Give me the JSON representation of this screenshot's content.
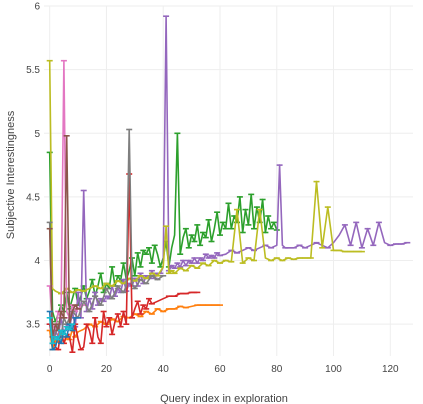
{
  "chart_data": {
    "type": "line",
    "title": "",
    "xlabel": "Query index in exploration",
    "ylabel": "Subjective Interestingness",
    "xlim": [
      -2,
      128
    ],
    "ylim": [
      3.25,
      6.0
    ],
    "xticks": [
      0,
      20,
      40,
      60,
      80,
      100,
      120
    ],
    "yticks": [
      3.5,
      4,
      4.5,
      5,
      5.5,
      6
    ],
    "ytick_labels": [
      "3.5",
      "4",
      "4.5",
      "5",
      "5.5",
      "6"
    ],
    "grid": true,
    "legend": "none",
    "series": [
      {
        "color": "#2ca02c",
        "x": [
          0,
          1,
          2,
          3,
          4,
          5,
          6,
          7,
          8,
          9,
          10,
          11,
          12,
          13,
          14,
          15,
          16,
          17,
          18,
          19,
          20,
          21,
          22,
          23,
          24,
          25,
          26,
          27,
          28,
          29,
          30,
          31,
          32,
          33,
          34,
          35,
          36,
          37,
          38,
          39,
          40,
          41,
          42,
          43,
          44,
          45,
          46,
          47,
          48,
          49,
          50,
          51,
          52,
          53,
          54,
          55,
          56,
          57,
          58,
          59,
          60,
          61,
          62,
          63,
          64,
          65,
          66,
          67,
          68,
          69,
          70,
          71,
          72,
          73,
          74,
          75,
          76,
          77,
          78,
          79,
          80
        ],
        "y": [
          4.85,
          3.6,
          3.52,
          3.58,
          3.65,
          3.6,
          3.75,
          3.62,
          3.7,
          3.78,
          3.65,
          3.72,
          3.8,
          3.7,
          3.76,
          3.85,
          3.72,
          3.8,
          3.9,
          3.75,
          3.82,
          3.78,
          3.95,
          3.8,
          3.88,
          3.84,
          3.98,
          3.85,
          3.92,
          4.02,
          3.88,
          4.06,
          3.95,
          4.08,
          4.05,
          4.1,
          3.98,
          4.12,
          4.05,
          3.95,
          4.02,
          4.15,
          3.95,
          4.1,
          4.2,
          5.0,
          4.05,
          4.18,
          4.25,
          4.1,
          4.2,
          4.15,
          4.28,
          4.12,
          4.22,
          4.18,
          4.32,
          4.15,
          4.25,
          4.38,
          4.2,
          4.3,
          4.25,
          4.45,
          4.25,
          4.35,
          4.3,
          4.5,
          4.22,
          4.4,
          4.28,
          4.52,
          4.25,
          4.42,
          4.3,
          4.48,
          4.22,
          4.35,
          4.25,
          4.3,
          4.24
        ]
      },
      {
        "color": "#9467bd",
        "x": [
          0,
          1,
          2,
          3,
          4,
          5,
          6,
          7,
          8,
          9,
          10,
          11,
          12,
          13,
          14,
          15,
          16,
          17,
          18,
          19,
          20,
          21,
          22,
          23,
          24,
          25,
          26,
          27,
          28,
          29,
          30,
          31,
          32,
          33,
          34,
          35,
          36,
          37,
          38,
          39,
          40,
          41,
          42,
          43,
          44,
          45,
          46,
          47,
          48,
          49,
          50,
          51,
          52,
          53,
          54,
          55,
          56,
          57,
          58,
          59,
          60,
          62,
          64,
          66,
          68,
          70,
          72,
          74,
          76,
          78,
          80,
          81,
          82,
          83,
          84,
          86,
          88,
          90,
          92,
          94,
          96,
          98,
          100,
          102,
          104,
          106,
          108,
          110,
          112,
          114,
          116,
          118,
          120,
          122,
          124,
          126
        ],
        "y": [
          3.5,
          3.35,
          3.45,
          3.4,
          3.55,
          3.42,
          3.5,
          3.46,
          3.6,
          3.48,
          3.75,
          3.55,
          4.55,
          3.6,
          3.7,
          3.62,
          3.75,
          3.65,
          3.7,
          3.68,
          3.72,
          3.7,
          3.8,
          3.72,
          3.78,
          3.75,
          3.85,
          3.76,
          3.82,
          3.8,
          3.86,
          3.8,
          3.9,
          3.82,
          3.88,
          3.86,
          3.92,
          3.86,
          3.9,
          3.9,
          3.95,
          5.92,
          3.92,
          3.96,
          3.94,
          3.98,
          3.95,
          4.0,
          3.96,
          4.0,
          3.98,
          4.02,
          3.98,
          4.02,
          4.0,
          4.05,
          4.02,
          4.04,
          4.02,
          4.06,
          4.04,
          4.05,
          4.08,
          4.06,
          4.08,
          4.1,
          4.08,
          4.1,
          4.12,
          4.1,
          4.12,
          4.75,
          4.12,
          4.1,
          4.1,
          4.1,
          4.12,
          4.1,
          4.12,
          4.14,
          4.12,
          4.1,
          4.14,
          4.2,
          4.28,
          4.12,
          4.3,
          4.1,
          4.25,
          4.12,
          4.3,
          4.14,
          4.12,
          4.13,
          4.13,
          4.14
        ]
      },
      {
        "color": "#bcbd22",
        "x": [
          0,
          1,
          2,
          3,
          4,
          5,
          6,
          8,
          10,
          12,
          14,
          16,
          18,
          20,
          22,
          24,
          26,
          28,
          30,
          32,
          34,
          36,
          38,
          40,
          41,
          42,
          43,
          44,
          46,
          48,
          50,
          52,
          54,
          56,
          58,
          60,
          62,
          64,
          66,
          68,
          70,
          72,
          74,
          76,
          78,
          80,
          82,
          84,
          86,
          88,
          90,
          92,
          94,
          96,
          98,
          100,
          102,
          104,
          106,
          108,
          110
        ],
        "y": [
          5.57,
          3.78,
          3.76,
          3.75,
          3.74,
          3.76,
          3.78,
          3.75,
          3.77,
          3.76,
          3.78,
          3.8,
          3.78,
          3.82,
          3.8,
          3.84,
          3.82,
          3.86,
          3.84,
          3.88,
          3.86,
          3.9,
          3.88,
          3.95,
          4.27,
          3.9,
          3.92,
          3.9,
          3.94,
          3.92,
          3.96,
          3.94,
          3.98,
          3.96,
          4.0,
          3.98,
          4.0,
          3.99,
          4.4,
          3.98,
          4.02,
          4.0,
          4.4,
          4.02,
          4.0,
          4.02,
          4.0,
          4.02,
          4.01,
          4.02,
          4.02,
          4.02,
          4.62,
          4.1,
          4.42,
          4.08,
          4.08,
          4.07,
          4.07,
          4.07,
          4.07
        ]
      },
      {
        "color": "#ff7f0e",
        "x": [
          0,
          1,
          2,
          3,
          4,
          5,
          6,
          7,
          8,
          9,
          10,
          12,
          14,
          16,
          18,
          20,
          22,
          24,
          26,
          28,
          30,
          32,
          34,
          36,
          38,
          40,
          42,
          44,
          46,
          48,
          50,
          52,
          54,
          56,
          58,
          60
        ],
        "y": [
          3.45,
          3.3,
          3.38,
          3.36,
          3.42,
          3.35,
          3.4,
          3.38,
          3.46,
          3.4,
          3.44,
          3.46,
          3.5,
          3.48,
          3.52,
          3.5,
          3.54,
          3.52,
          3.56,
          3.55,
          3.58,
          3.56,
          3.6,
          3.58,
          3.62,
          3.6,
          3.62,
          3.62,
          3.64,
          3.63,
          3.64,
          3.65,
          3.65,
          3.65,
          3.65,
          3.65
        ]
      },
      {
        "color": "#d62728",
        "x": [
          0,
          1,
          2,
          3,
          4,
          5,
          6,
          7,
          8,
          9,
          10,
          11,
          12,
          13,
          14,
          15,
          16,
          17,
          18,
          19,
          20,
          21,
          22,
          23,
          24,
          25,
          26,
          27,
          28,
          29,
          30,
          31,
          32,
          33,
          34,
          35,
          36,
          38,
          40,
          42,
          44,
          46,
          48,
          50,
          52
        ],
        "y": [
          3.5,
          3.4,
          3.32,
          3.3,
          3.45,
          3.35,
          3.42,
          3.4,
          3.28,
          3.5,
          3.38,
          3.3,
          3.32,
          3.5,
          3.45,
          3.35,
          3.55,
          3.4,
          3.35,
          3.6,
          3.48,
          3.55,
          3.42,
          3.52,
          3.58,
          3.48,
          3.6,
          3.5,
          4.68,
          3.55,
          3.62,
          3.68,
          3.58,
          3.65,
          3.62,
          3.7,
          3.66,
          3.68,
          3.7,
          3.72,
          3.72,
          3.74,
          3.74,
          3.75,
          3.75
        ]
      },
      {
        "color": "#e377c2",
        "x": [
          0,
          1,
          2,
          3,
          4,
          5,
          6,
          7,
          8,
          9,
          10,
          11,
          12
        ],
        "y": [
          3.8,
          3.5,
          3.45,
          3.6,
          3.55,
          5.57,
          3.6,
          3.55,
          3.65,
          3.6,
          3.62,
          3.64,
          3.65
        ]
      },
      {
        "color": "#7f7f7f",
        "x": [
          0,
          1,
          2,
          3,
          4,
          5,
          6,
          8,
          10,
          12,
          14,
          16,
          18,
          20,
          22,
          24,
          26,
          27,
          28,
          29,
          30,
          32,
          34,
          36,
          38,
          40
        ],
        "y": [
          4.3,
          3.35,
          3.42,
          3.5,
          3.4,
          3.55,
          3.5,
          3.6,
          3.55,
          3.68,
          3.6,
          3.72,
          3.65,
          3.78,
          3.7,
          3.8,
          3.75,
          3.8,
          5.03,
          3.82,
          3.78,
          3.85,
          3.82,
          3.88,
          3.85,
          3.88
        ]
      },
      {
        "color": "#8c564b",
        "x": [
          0,
          1,
          2,
          3,
          4,
          5,
          6,
          7,
          8,
          9,
          10
        ],
        "y": [
          4.25,
          3.4,
          3.5,
          3.45,
          3.6,
          3.55,
          4.98,
          3.5,
          3.6,
          3.65,
          3.62
        ]
      },
      {
        "color": "#1f77b4",
        "x": [
          0,
          1,
          2,
          3,
          4,
          5,
          6,
          7,
          8,
          9,
          10
        ],
        "y": [
          3.6,
          3.3,
          3.32,
          3.4,
          3.35,
          3.45,
          3.4,
          3.5,
          3.45,
          3.55,
          3.55
        ]
      },
      {
        "color": "#17becf",
        "x": [
          0,
          1,
          2,
          3,
          4,
          5,
          6,
          7,
          8
        ],
        "y": [
          3.55,
          3.35,
          3.4,
          3.38,
          3.45,
          3.42,
          3.48,
          3.46,
          3.5
        ]
      }
    ]
  }
}
